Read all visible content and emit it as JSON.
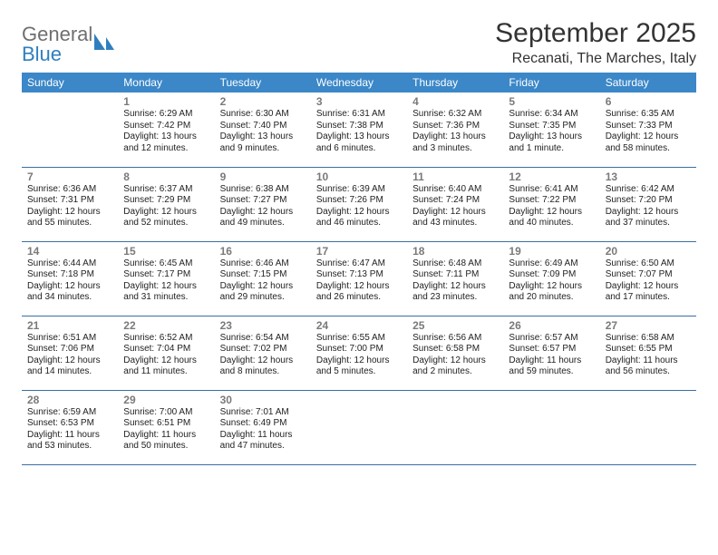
{
  "brand": {
    "word1": "General",
    "word2": "Blue",
    "logo_color": "#2f7fbf",
    "text_color_general": "#6f6f6f",
    "text_color_blue": "#2f7fbf"
  },
  "title": "September 2025",
  "location": "Recanati, The Marches, Italy",
  "colors": {
    "header_bg": "#3b87c8",
    "header_text": "#ffffff",
    "cell_border": "#3b6fa0",
    "daynum": "#7a7a7a",
    "body_text": "#222222",
    "page_bg": "#ffffff",
    "title_text": "#333333"
  },
  "typography": {
    "month_title_pt": 30,
    "location_pt": 16,
    "weekday_pt": 12,
    "daynum_pt": 12,
    "body_pt": 10
  },
  "weekdays": [
    "Sunday",
    "Monday",
    "Tuesday",
    "Wednesday",
    "Thursday",
    "Friday",
    "Saturday"
  ],
  "weeks": [
    [
      null,
      {
        "n": "1",
        "sr": "Sunrise: 6:29 AM",
        "ss": "Sunset: 7:42 PM",
        "d1": "Daylight: 13 hours",
        "d2": "and 12 minutes."
      },
      {
        "n": "2",
        "sr": "Sunrise: 6:30 AM",
        "ss": "Sunset: 7:40 PM",
        "d1": "Daylight: 13 hours",
        "d2": "and 9 minutes."
      },
      {
        "n": "3",
        "sr": "Sunrise: 6:31 AM",
        "ss": "Sunset: 7:38 PM",
        "d1": "Daylight: 13 hours",
        "d2": "and 6 minutes."
      },
      {
        "n": "4",
        "sr": "Sunrise: 6:32 AM",
        "ss": "Sunset: 7:36 PM",
        "d1": "Daylight: 13 hours",
        "d2": "and 3 minutes."
      },
      {
        "n": "5",
        "sr": "Sunrise: 6:34 AM",
        "ss": "Sunset: 7:35 PM",
        "d1": "Daylight: 13 hours",
        "d2": "and 1 minute."
      },
      {
        "n": "6",
        "sr": "Sunrise: 6:35 AM",
        "ss": "Sunset: 7:33 PM",
        "d1": "Daylight: 12 hours",
        "d2": "and 58 minutes."
      }
    ],
    [
      {
        "n": "7",
        "sr": "Sunrise: 6:36 AM",
        "ss": "Sunset: 7:31 PM",
        "d1": "Daylight: 12 hours",
        "d2": "and 55 minutes."
      },
      {
        "n": "8",
        "sr": "Sunrise: 6:37 AM",
        "ss": "Sunset: 7:29 PM",
        "d1": "Daylight: 12 hours",
        "d2": "and 52 minutes."
      },
      {
        "n": "9",
        "sr": "Sunrise: 6:38 AM",
        "ss": "Sunset: 7:27 PM",
        "d1": "Daylight: 12 hours",
        "d2": "and 49 minutes."
      },
      {
        "n": "10",
        "sr": "Sunrise: 6:39 AM",
        "ss": "Sunset: 7:26 PM",
        "d1": "Daylight: 12 hours",
        "d2": "and 46 minutes."
      },
      {
        "n": "11",
        "sr": "Sunrise: 6:40 AM",
        "ss": "Sunset: 7:24 PM",
        "d1": "Daylight: 12 hours",
        "d2": "and 43 minutes."
      },
      {
        "n": "12",
        "sr": "Sunrise: 6:41 AM",
        "ss": "Sunset: 7:22 PM",
        "d1": "Daylight: 12 hours",
        "d2": "and 40 minutes."
      },
      {
        "n": "13",
        "sr": "Sunrise: 6:42 AM",
        "ss": "Sunset: 7:20 PM",
        "d1": "Daylight: 12 hours",
        "d2": "and 37 minutes."
      }
    ],
    [
      {
        "n": "14",
        "sr": "Sunrise: 6:44 AM",
        "ss": "Sunset: 7:18 PM",
        "d1": "Daylight: 12 hours",
        "d2": "and 34 minutes."
      },
      {
        "n": "15",
        "sr": "Sunrise: 6:45 AM",
        "ss": "Sunset: 7:17 PM",
        "d1": "Daylight: 12 hours",
        "d2": "and 31 minutes."
      },
      {
        "n": "16",
        "sr": "Sunrise: 6:46 AM",
        "ss": "Sunset: 7:15 PM",
        "d1": "Daylight: 12 hours",
        "d2": "and 29 minutes."
      },
      {
        "n": "17",
        "sr": "Sunrise: 6:47 AM",
        "ss": "Sunset: 7:13 PM",
        "d1": "Daylight: 12 hours",
        "d2": "and 26 minutes."
      },
      {
        "n": "18",
        "sr": "Sunrise: 6:48 AM",
        "ss": "Sunset: 7:11 PM",
        "d1": "Daylight: 12 hours",
        "d2": "and 23 minutes."
      },
      {
        "n": "19",
        "sr": "Sunrise: 6:49 AM",
        "ss": "Sunset: 7:09 PM",
        "d1": "Daylight: 12 hours",
        "d2": "and 20 minutes."
      },
      {
        "n": "20",
        "sr": "Sunrise: 6:50 AM",
        "ss": "Sunset: 7:07 PM",
        "d1": "Daylight: 12 hours",
        "d2": "and 17 minutes."
      }
    ],
    [
      {
        "n": "21",
        "sr": "Sunrise: 6:51 AM",
        "ss": "Sunset: 7:06 PM",
        "d1": "Daylight: 12 hours",
        "d2": "and 14 minutes."
      },
      {
        "n": "22",
        "sr": "Sunrise: 6:52 AM",
        "ss": "Sunset: 7:04 PM",
        "d1": "Daylight: 12 hours",
        "d2": "and 11 minutes."
      },
      {
        "n": "23",
        "sr": "Sunrise: 6:54 AM",
        "ss": "Sunset: 7:02 PM",
        "d1": "Daylight: 12 hours",
        "d2": "and 8 minutes."
      },
      {
        "n": "24",
        "sr": "Sunrise: 6:55 AM",
        "ss": "Sunset: 7:00 PM",
        "d1": "Daylight: 12 hours",
        "d2": "and 5 minutes."
      },
      {
        "n": "25",
        "sr": "Sunrise: 6:56 AM",
        "ss": "Sunset: 6:58 PM",
        "d1": "Daylight: 12 hours",
        "d2": "and 2 minutes."
      },
      {
        "n": "26",
        "sr": "Sunrise: 6:57 AM",
        "ss": "Sunset: 6:57 PM",
        "d1": "Daylight: 11 hours",
        "d2": "and 59 minutes."
      },
      {
        "n": "27",
        "sr": "Sunrise: 6:58 AM",
        "ss": "Sunset: 6:55 PM",
        "d1": "Daylight: 11 hours",
        "d2": "and 56 minutes."
      }
    ],
    [
      {
        "n": "28",
        "sr": "Sunrise: 6:59 AM",
        "ss": "Sunset: 6:53 PM",
        "d1": "Daylight: 11 hours",
        "d2": "and 53 minutes."
      },
      {
        "n": "29",
        "sr": "Sunrise: 7:00 AM",
        "ss": "Sunset: 6:51 PM",
        "d1": "Daylight: 11 hours",
        "d2": "and 50 minutes."
      },
      {
        "n": "30",
        "sr": "Sunrise: 7:01 AM",
        "ss": "Sunset: 6:49 PM",
        "d1": "Daylight: 11 hours",
        "d2": "and 47 minutes."
      },
      null,
      null,
      null,
      null
    ]
  ]
}
